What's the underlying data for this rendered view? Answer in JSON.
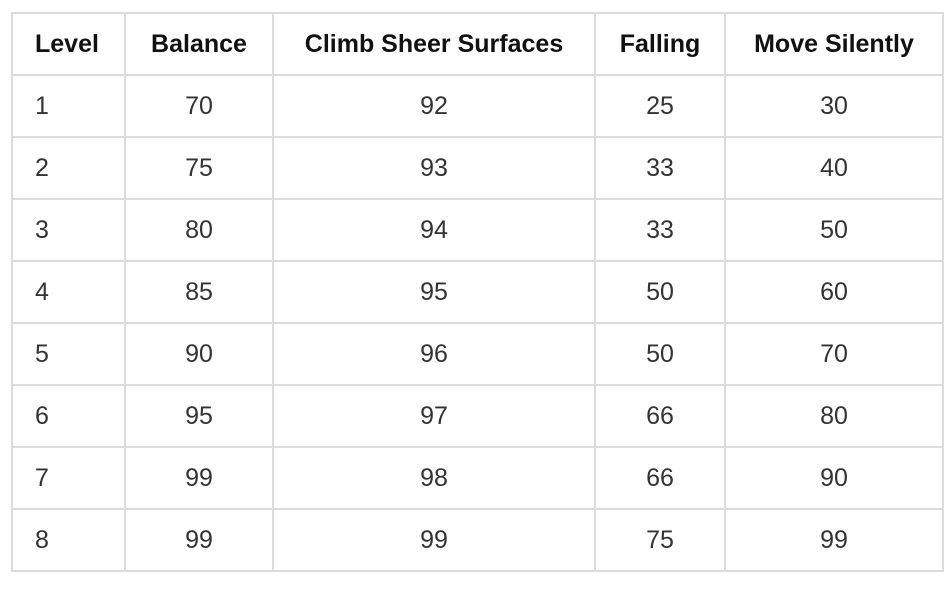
{
  "table": {
    "columns": [
      "Level",
      "Balance",
      "Climb Sheer Surfaces",
      "Falling",
      "Move Silently"
    ],
    "rows": [
      [
        "1",
        "70",
        "92",
        "25",
        "30"
      ],
      [
        "2",
        "75",
        "93",
        "33",
        "40"
      ],
      [
        "3",
        "80",
        "94",
        "33",
        "50"
      ],
      [
        "4",
        "85",
        "95",
        "50",
        "60"
      ],
      [
        "5",
        "90",
        "96",
        "50",
        "70"
      ],
      [
        "6",
        "95",
        "97",
        "66",
        "80"
      ],
      [
        "7",
        "99",
        "98",
        "66",
        "90"
      ],
      [
        "8",
        "99",
        "99",
        "75",
        "99"
      ]
    ]
  },
  "colors": {
    "border": "#dcdcdc",
    "header_text": "#111111",
    "cell_text": "#333333",
    "background": "#ffffff"
  }
}
